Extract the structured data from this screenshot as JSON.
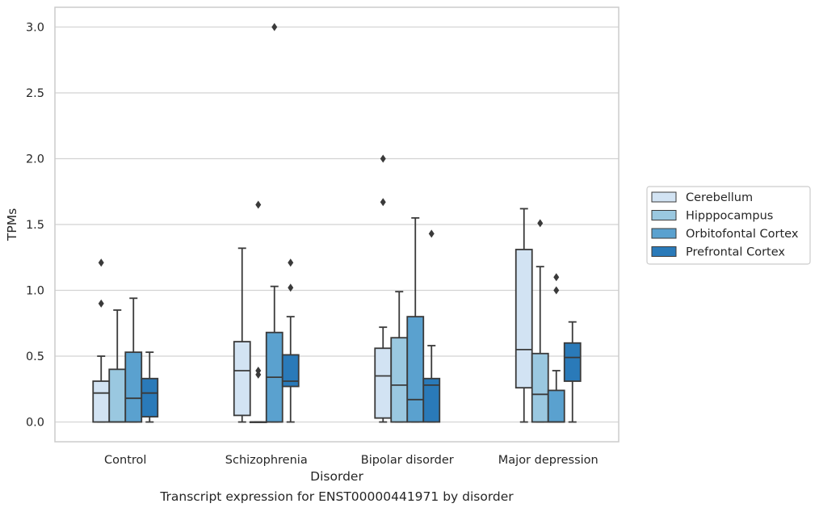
{
  "chart_data": {
    "type": "box",
    "xlabel": "Disorder",
    "ylabel": "TPMs",
    "ylim": [
      -0.15,
      3.15
    ],
    "yticks": [
      "0.0",
      "0.5",
      "1.0",
      "1.5",
      "2.0",
      "2.5",
      "3.0"
    ],
    "ytick_values": [
      0.0,
      0.5,
      1.0,
      1.5,
      2.0,
      2.5,
      3.0
    ],
    "grid": "horizontal",
    "legend_position": "right",
    "categories": [
      "Control",
      "Schizophrenia",
      "Bipolar disorder",
      "Major depression"
    ],
    "series": [
      {
        "name": "Cerebellum",
        "color": "#d2e3f3",
        "boxes": [
          {
            "whislo": 0.0,
            "q1": 0.0,
            "med": 0.22,
            "q3": 0.31,
            "whishi": 0.5,
            "fliers": [
              0.9,
              1.21
            ]
          },
          {
            "whislo": 0.0,
            "q1": 0.05,
            "med": 0.39,
            "q3": 0.61,
            "whishi": 1.32,
            "fliers": []
          },
          {
            "whislo": 0.0,
            "q1": 0.03,
            "med": 0.35,
            "q3": 0.56,
            "whishi": 0.72,
            "fliers": [
              1.67,
              2.0
            ]
          },
          {
            "whislo": 0.0,
            "q1": 0.26,
            "med": 0.55,
            "q3": 1.31,
            "whishi": 1.62,
            "fliers": []
          }
        ]
      },
      {
        "name": "Hipppocampus",
        "color": "#9ac8e0",
        "boxes": [
          {
            "whislo": 0.0,
            "q1": 0.0,
            "med": 0.0,
            "q3": 0.4,
            "whishi": 0.85,
            "fliers": []
          },
          {
            "whislo": 0.0,
            "q1": 0.0,
            "med": 0.0,
            "q3": 0.0,
            "whishi": 0.0,
            "fliers": [
              0.36,
              0.39,
              1.65
            ]
          },
          {
            "whislo": 0.0,
            "q1": 0.0,
            "med": 0.28,
            "q3": 0.64,
            "whishi": 0.99,
            "fliers": []
          },
          {
            "whislo": 0.0,
            "q1": 0.0,
            "med": 0.21,
            "q3": 0.52,
            "whishi": 1.18,
            "fliers": [
              1.51
            ]
          }
        ]
      },
      {
        "name": "Orbitofontal Cortex",
        "color": "#5aa1cf",
        "boxes": [
          {
            "whislo": 0.0,
            "q1": 0.0,
            "med": 0.18,
            "q3": 0.53,
            "whishi": 0.94,
            "fliers": []
          },
          {
            "whislo": 0.0,
            "q1": 0.0,
            "med": 0.34,
            "q3": 0.68,
            "whishi": 1.03,
            "fliers": [
              3.0
            ]
          },
          {
            "whislo": 0.0,
            "q1": 0.0,
            "med": 0.17,
            "q3": 0.8,
            "whishi": 1.55,
            "fliers": []
          },
          {
            "whislo": 0.0,
            "q1": 0.0,
            "med": 0.0,
            "q3": 0.24,
            "whishi": 0.39,
            "fliers": [
              1.0,
              1.1
            ]
          }
        ]
      },
      {
        "name": "Prefrontal Cortex",
        "color": "#2a7ab9",
        "boxes": [
          {
            "whislo": 0.0,
            "q1": 0.04,
            "med": 0.22,
            "q3": 0.33,
            "whishi": 0.53,
            "fliers": []
          },
          {
            "whislo": 0.0,
            "q1": 0.27,
            "med": 0.31,
            "q3": 0.51,
            "whishi": 0.8,
            "fliers": [
              1.02,
              1.21
            ]
          },
          {
            "whislo": 0.0,
            "q1": 0.0,
            "med": 0.28,
            "q3": 0.33,
            "whishi": 0.58,
            "fliers": [
              1.43
            ]
          },
          {
            "whislo": 0.0,
            "q1": 0.31,
            "med": 0.49,
            "q3": 0.6,
            "whishi": 0.76,
            "fliers": []
          }
        ]
      }
    ]
  },
  "caption": "Transcript expression for ENST00000441971 by disorder"
}
